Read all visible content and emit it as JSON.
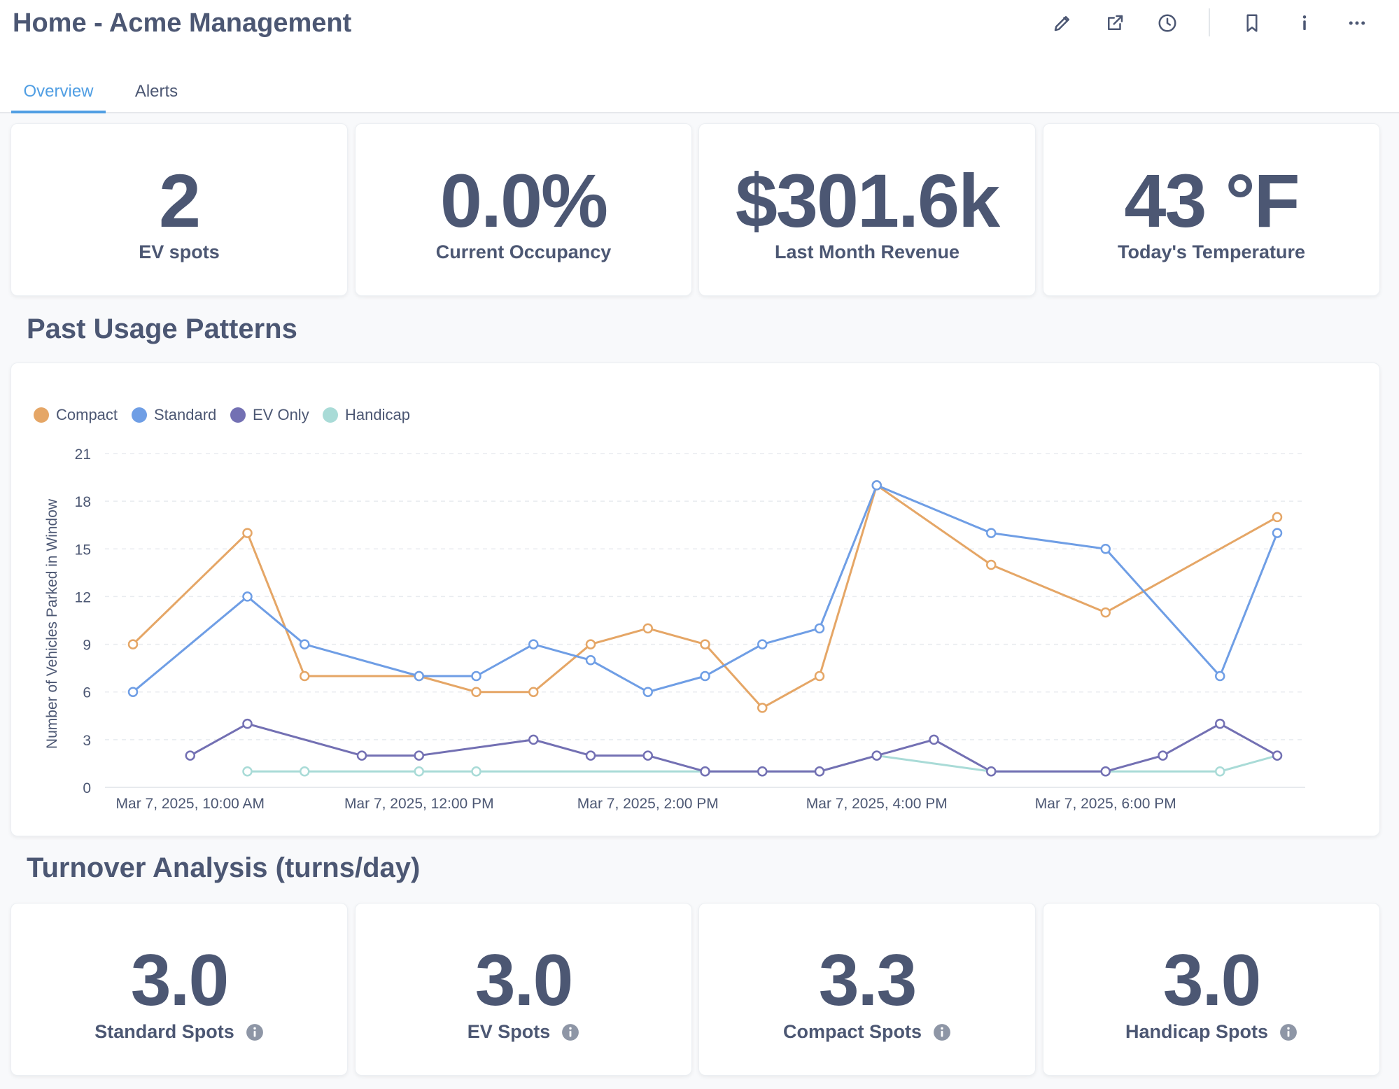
{
  "header": {
    "title": "Home - Acme Management",
    "tabs": [
      {
        "label": "Overview",
        "active": true
      },
      {
        "label": "Alerts",
        "active": false
      }
    ],
    "toolbar_icons": [
      "pencil-icon",
      "share-icon",
      "clock-icon",
      "bookmark-icon",
      "info-icon",
      "more-icon"
    ]
  },
  "metrics": [
    {
      "value": "2",
      "label": "EV spots"
    },
    {
      "value": "0.0%",
      "label": "Current Occupancy"
    },
    {
      "value": "$301.6k",
      "label": "Last Month Revenue"
    },
    {
      "value": "43 °F",
      "label": "Today's Temperature"
    }
  ],
  "usage_section": {
    "title": "Past Usage Patterns"
  },
  "turnover_section": {
    "title": "Turnover Analysis (turns/day)"
  },
  "turnover": [
    {
      "value": "3.0",
      "label": "Standard Spots"
    },
    {
      "value": "3.0",
      "label": "EV Spots"
    },
    {
      "value": "3.3",
      "label": "Compact Spots"
    },
    {
      "value": "3.0",
      "label": "Handicap Spots"
    }
  ],
  "colors": {
    "Compact": "#e5a666",
    "Standard": "#6f9ee5",
    "EV Only": "#7370b3",
    "Handicap": "#a9dbd7",
    "text": "#4c5773",
    "accent": "#509ee3"
  },
  "chart_data": {
    "type": "line",
    "title": "Past Usage Patterns",
    "xlabel": "",
    "ylabel": "Number of Vehicles Parked in Window",
    "ylim": [
      0,
      21
    ],
    "y_ticks": [
      0,
      3,
      6,
      9,
      12,
      15,
      18,
      21
    ],
    "x_ticks": [
      {
        "at": 10.0,
        "label": "Mar 7, 2025, 10:00 AM"
      },
      {
        "at": 12.0,
        "label": "Mar 7, 2025, 12:00 PM"
      },
      {
        "at": 14.0,
        "label": "Mar 7, 2025, 2:00 PM"
      },
      {
        "at": 16.0,
        "label": "Mar 7, 2025, 4:00 PM"
      },
      {
        "at": 18.0,
        "label": "Mar 7, 2025, 6:00 PM"
      }
    ],
    "x_hours": [
      9.5,
      10.0,
      10.5,
      11.0,
      11.5,
      12.0,
      12.5,
      13.0,
      13.5,
      14.0,
      14.5,
      15.0,
      15.5,
      16.0,
      16.5,
      17.0,
      17.5,
      18.0,
      18.5,
      19.0,
      19.5
    ],
    "series": [
      {
        "name": "Compact",
        "values": [
          9,
          null,
          16,
          7,
          null,
          7,
          6,
          6,
          9,
          10,
          9,
          5,
          7,
          19,
          null,
          14,
          null,
          11,
          null,
          null,
          17
        ]
      },
      {
        "name": "Standard",
        "values": [
          6,
          null,
          12,
          9,
          null,
          7,
          7,
          9,
          8,
          6,
          7,
          9,
          10,
          19,
          null,
          16,
          null,
          15,
          null,
          7,
          16
        ]
      },
      {
        "name": "EV Only",
        "values": [
          null,
          2,
          4,
          null,
          2,
          2,
          null,
          3,
          2,
          2,
          1,
          1,
          1,
          2,
          3,
          1,
          null,
          1,
          2,
          4,
          2
        ]
      },
      {
        "name": "Handicap",
        "values": [
          null,
          null,
          1,
          1,
          null,
          1,
          1,
          null,
          null,
          null,
          1,
          1,
          1,
          2,
          null,
          1,
          null,
          1,
          null,
          1,
          2
        ]
      }
    ],
    "legend_position": "top-left",
    "grid": true
  }
}
